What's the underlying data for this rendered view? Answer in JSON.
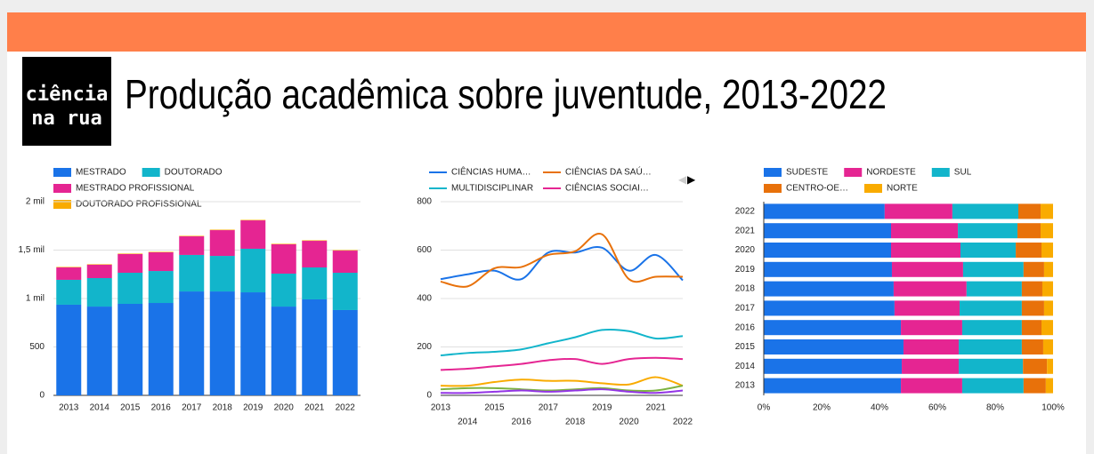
{
  "header": {
    "logo": [
      "ciência",
      "na rua"
    ],
    "title": "Produção acadêmica sobre juventude, 2013-2022"
  },
  "chart_data": [
    {
      "type": "bar",
      "stacked": true,
      "categories": [
        "2013",
        "2014",
        "2015",
        "2016",
        "2017",
        "2018",
        "2019",
        "2020",
        "2021",
        "2022"
      ],
      "series": [
        {
          "name": "MESTRADO",
          "color": "#1a73e8",
          "values": [
            936,
            917,
            945,
            954,
            1073,
            1073,
            1064,
            917,
            991,
            881
          ]
        },
        {
          "name": "DOUTORADO",
          "color": "#12b5cb",
          "values": [
            257,
            294,
            321,
            330,
            377,
            367,
            450,
            340,
            330,
            385
          ]
        },
        {
          "name": "MESTRADO PROFISSIONAL",
          "color": "#e52592",
          "values": [
            128,
            138,
            193,
            193,
            192,
            266,
            293,
            303,
            275,
            229
          ]
        },
        {
          "name": "DOUTORADO PROFISSIONAL",
          "color": "#f9ab00",
          "values": [
            5,
            5,
            5,
            5,
            5,
            5,
            5,
            5,
            5,
            5
          ]
        }
      ],
      "ylim": [
        0,
        2000
      ],
      "yticks": [
        0,
        500,
        {
          "value": 1000,
          "label": "1 mil"
        },
        {
          "value": 1500,
          "label": "1,5 mil"
        },
        {
          "value": 2000,
          "label": "2 mil"
        }
      ],
      "grid": true
    },
    {
      "type": "line",
      "x": [
        2013,
        2014,
        2015,
        2016,
        2017,
        2018,
        2019,
        2020,
        2021,
        2022
      ],
      "series": [
        {
          "name": "CIÊNCIAS HUMA…",
          "color": "#1a73e8",
          "values": [
            480,
            500,
            515,
            480,
            590,
            590,
            610,
            515,
            580,
            475
          ]
        },
        {
          "name": "CIÊNCIAS DA SAÚ…",
          "color": "#e8710a",
          "values": [
            470,
            450,
            525,
            530,
            580,
            595,
            665,
            480,
            490,
            490
          ]
        },
        {
          "name": "MULTIDISCIPLINAR",
          "color": "#12b5cb",
          "values": [
            165,
            175,
            180,
            190,
            215,
            240,
            270,
            265,
            235,
            245
          ]
        },
        {
          "name": "CIÊNCIAS SOCIAI…",
          "color": "#e52592",
          "values": [
            105,
            110,
            120,
            130,
            145,
            150,
            130,
            150,
            155,
            150
          ]
        },
        {
          "name": null,
          "color": "#f9ab00",
          "values": [
            40,
            40,
            55,
            65,
            60,
            60,
            50,
            45,
            75,
            40
          ]
        },
        {
          "name": null,
          "color": "#7cb342",
          "values": [
            25,
            30,
            30,
            25,
            20,
            25,
            30,
            20,
            20,
            40
          ]
        },
        {
          "name": null,
          "color": "#9334e6",
          "values": [
            10,
            10,
            15,
            20,
            15,
            20,
            25,
            15,
            10,
            20
          ]
        }
      ],
      "xlim": [
        2013,
        2022
      ],
      "xticks": [
        2013,
        2014,
        2015,
        2016,
        2017,
        2018,
        2019,
        2020,
        2021,
        2022
      ],
      "ylim": [
        0,
        800
      ],
      "yticks": [
        0,
        200,
        400,
        600,
        800
      ],
      "grid": true
    },
    {
      "type": "hbar",
      "stacked": true,
      "categories": [
        "2022",
        "2021",
        "2020",
        "2019",
        "2018",
        "2017",
        "2016",
        "2015",
        "2014",
        "2013"
      ],
      "series": [
        {
          "name": "SUDESTE",
          "color": "#1a73e8",
          "values": [
            41.8,
            44.0,
            44.0,
            44.3,
            44.9,
            45.2,
            47.4,
            48.3,
            47.7,
            47.4
          ]
        },
        {
          "name": "NORDESTE",
          "color": "#e52592",
          "values": [
            23.4,
            23.1,
            24.0,
            24.6,
            25.2,
            22.5,
            21.2,
            19.1,
            19.7,
            21.2
          ]
        },
        {
          "name": "SUL",
          "color": "#12b5cb",
          "values": [
            22.8,
            20.6,
            19.1,
            20.9,
            19.1,
            21.5,
            20.6,
            21.8,
            22.2,
            21.2
          ]
        },
        {
          "name": "CENTRO-OE…",
          "color": "#e8710a",
          "values": [
            7.7,
            8.0,
            8.9,
            7.1,
            7.1,
            7.7,
            6.8,
            7.4,
            8.3,
            7.7
          ]
        },
        {
          "name": "NORTE",
          "color": "#f9ab00",
          "values": [
            4.3,
            4.3,
            4.0,
            3.1,
            3.7,
            3.1,
            4.0,
            3.4,
            2.1,
            2.5
          ]
        }
      ],
      "xlim": [
        0,
        100
      ],
      "xticks": [
        {
          "value": 0,
          "label": "0%"
        },
        {
          "value": 20,
          "label": "20%"
        },
        {
          "value": 40,
          "label": "40%"
        },
        {
          "value": 60,
          "label": "60%"
        },
        {
          "value": 80,
          "label": "80%"
        },
        {
          "value": 100,
          "label": "100%"
        }
      ],
      "grid": false
    }
  ]
}
